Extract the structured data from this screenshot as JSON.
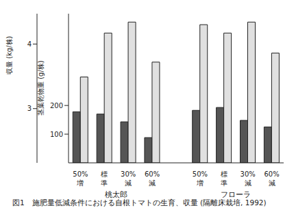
{
  "chart_data": {
    "type": "bar",
    "title": "図1　施肥量低減条件における自根トマトの生育、収量 (隔離床栽培, 1992)",
    "categories": [
      "50%増",
      "標準",
      "30%減",
      "60%減",
      null,
      "50%増",
      "標準",
      "30%減",
      "60%減"
    ],
    "group_labels": [
      "桃太郎",
      "フローラ"
    ],
    "y_label": "茎葉乾物重 (g/株)",
    "y2_label": "収量 (kg/株)",
    "ylim": [
      0,
      520
    ],
    "yticks": [
      100,
      200
    ],
    "y2lim": [
      2.16,
      4.47
    ],
    "y2ticks": [
      3,
      4
    ],
    "grid": false,
    "series": [
      {
        "name": "茎葉乾物重",
        "color": "#555555",
        "values": [
          178,
          170,
          143,
          88,
          null,
          183,
          193,
          148,
          125
        ]
      },
      {
        "name": "収量",
        "color": "#e0e0e0",
        "axis": "y2",
        "values": [
          3.49,
          4.17,
          4.34,
          3.72,
          null,
          4.3,
          4.17,
          4.34,
          3.86
        ]
      }
    ]
  }
}
